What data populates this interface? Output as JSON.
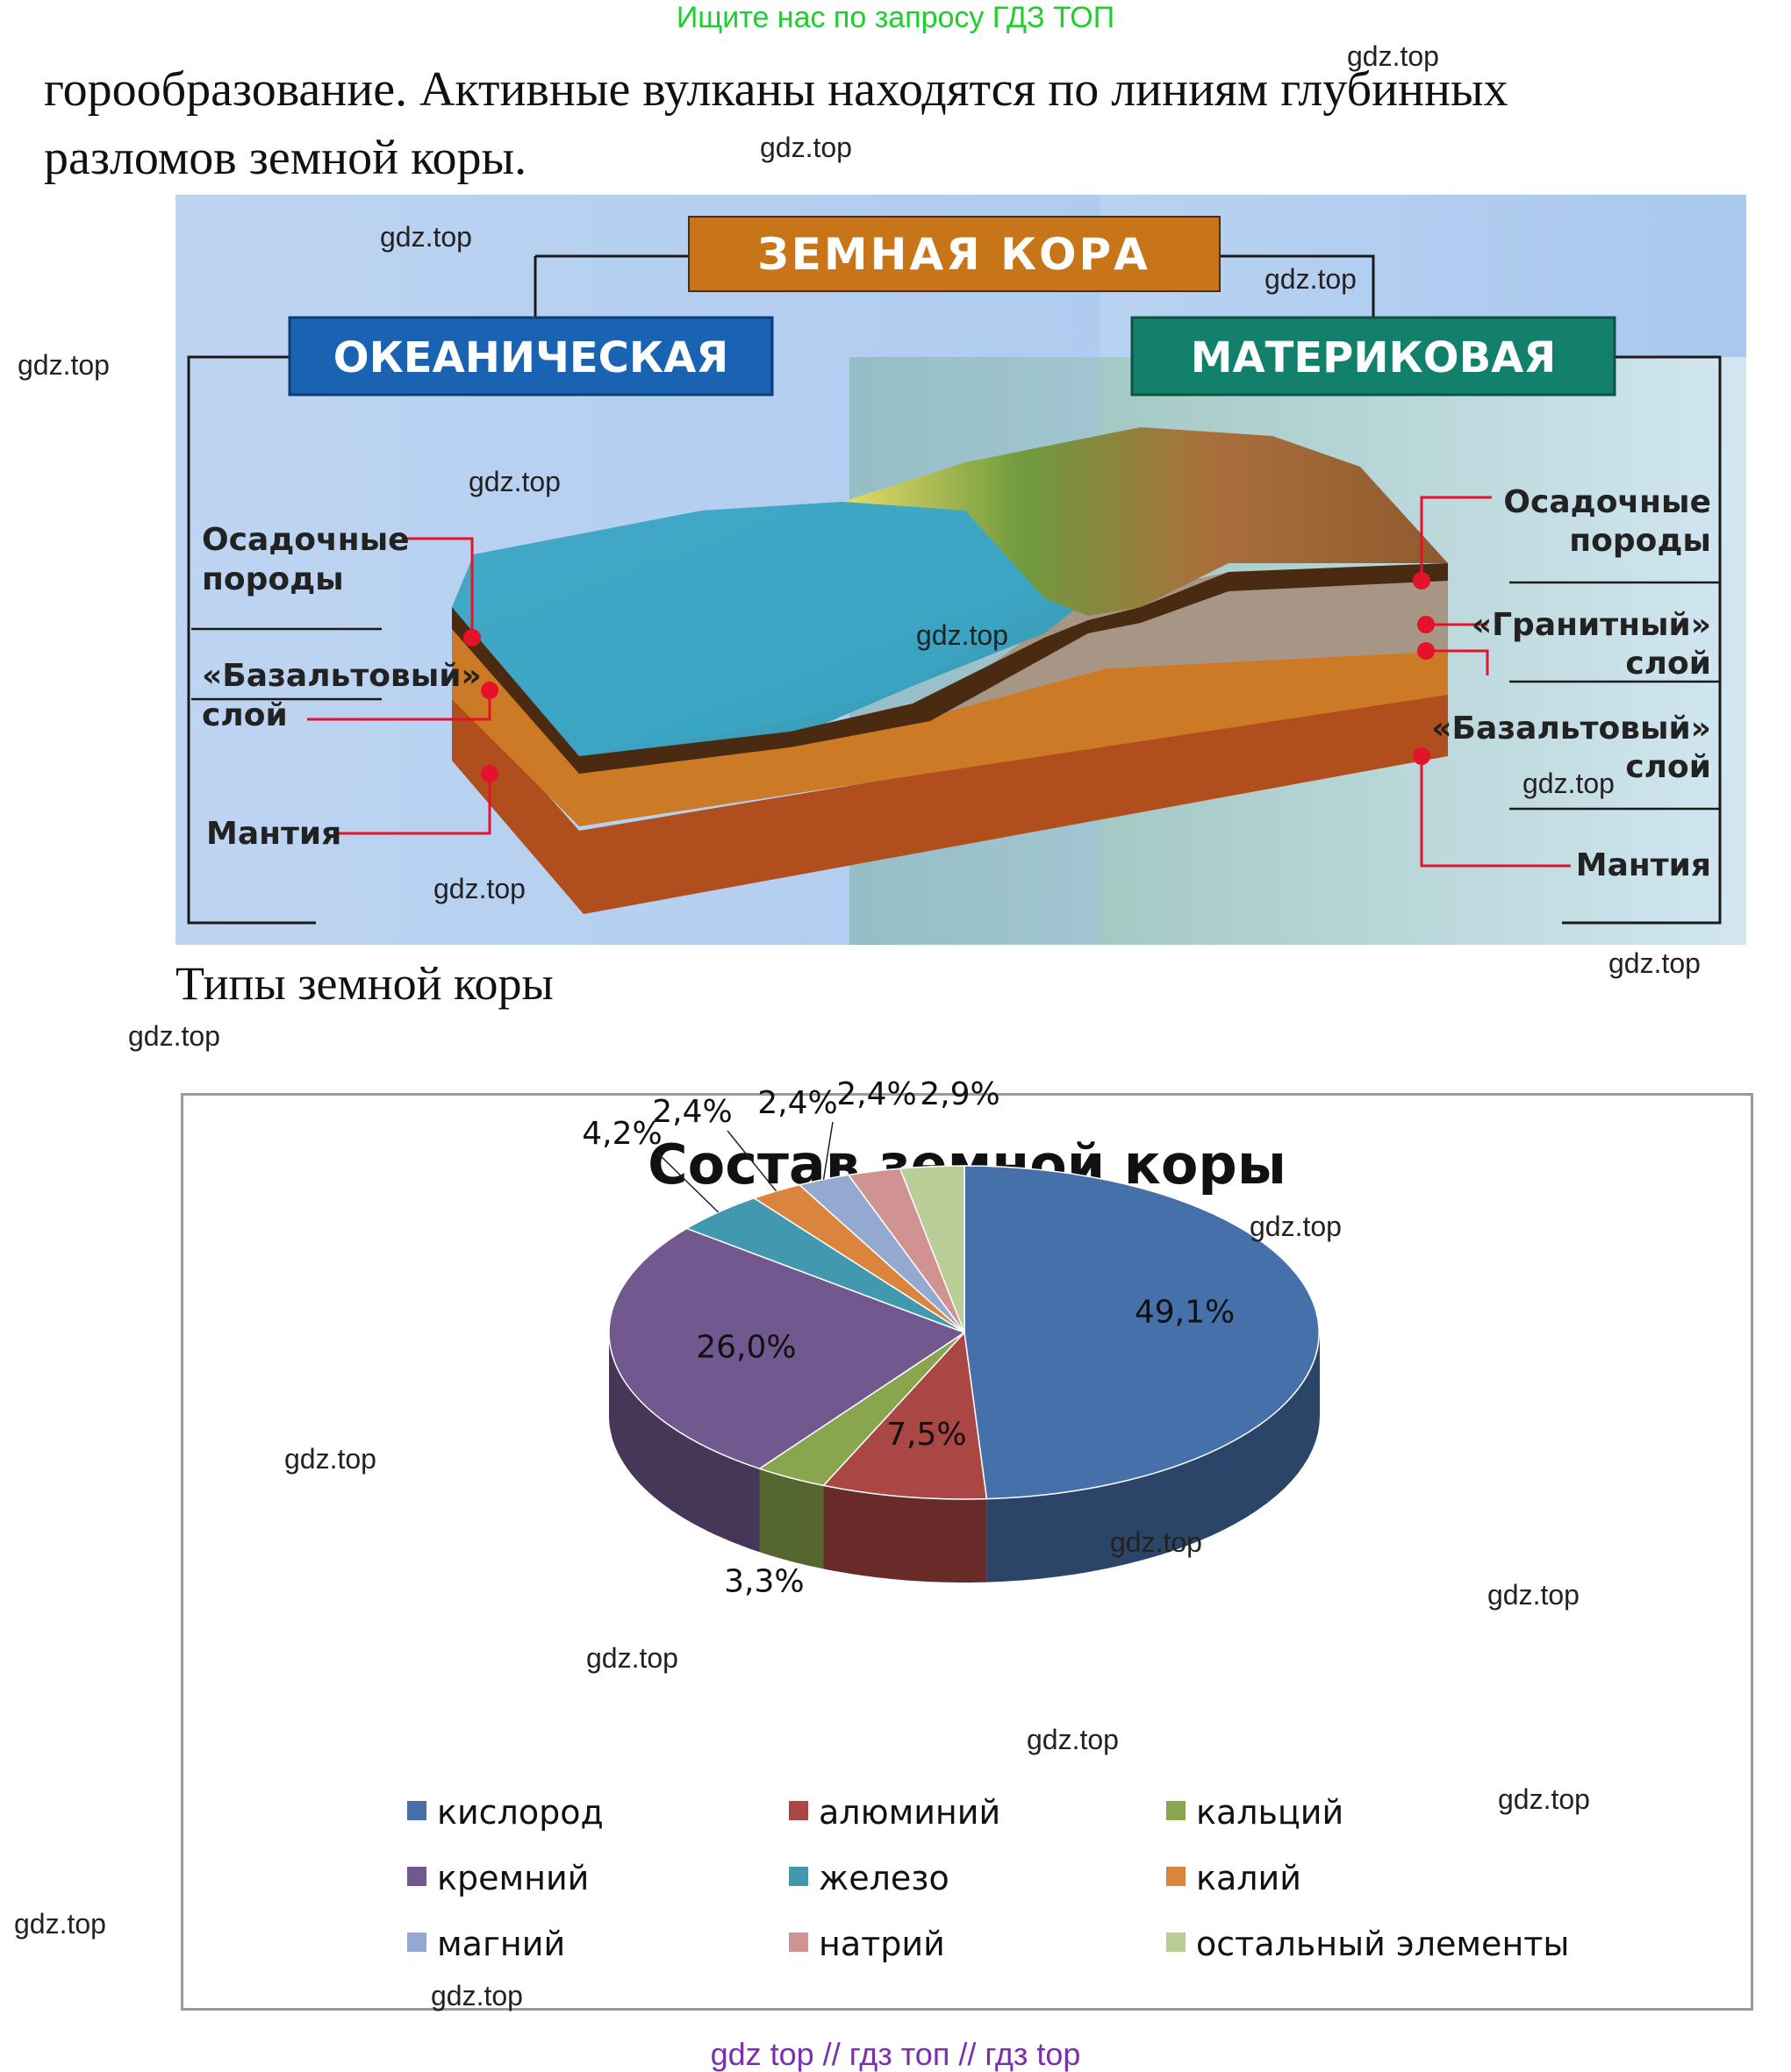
{
  "header": {
    "search_hint": "Ищите нас по запросу ГДЗ ТОП"
  },
  "text": {
    "line1": "горообразование. Активные вулканы находятся по линиям глубинных",
    "line2": "разломов земной коры."
  },
  "diagram": {
    "title": "ЗЕМНАЯ КОРА",
    "oceanic": {
      "heading": "ОКЕАНИЧЕСКАЯ",
      "sediment": [
        "Осадочные",
        "породы"
      ],
      "basalt": [
        "«Базальтовый»",
        "слой"
      ],
      "mantle": "Мантия"
    },
    "continental": {
      "heading": "МАТЕРИКОВАЯ",
      "sediment": [
        "Осадочные",
        "породы"
      ],
      "granite": [
        "«Гранитный»",
        "слой"
      ],
      "basalt": [
        "«Базальтовый»",
        "слой"
      ],
      "mantle": "Мантия"
    },
    "caption": "Типы земной коры",
    "colors": {
      "title_bg": "#c87519",
      "oceanic_bg": "#1a63b3",
      "continental_bg": "#12806a",
      "marker": "#e4122b"
    }
  },
  "chart_data": {
    "type": "pie",
    "title": "Состав земной коры",
    "categories": [
      "кислород",
      "алюминий",
      "кальций",
      "кремний",
      "железо",
      "калий",
      "магний",
      "натрий",
      "остальный элементы"
    ],
    "values": [
      49.1,
      7.5,
      3.3,
      26.0,
      4.2,
      2.4,
      2.4,
      2.4,
      2.9
    ],
    "labels": [
      "49,1%",
      "7,5%",
      "3,3%",
      "26,0%",
      "4,2%",
      "2,4%",
      "2,4%",
      "2,4%",
      "2,9%"
    ],
    "colors": [
      "#4570a9",
      "#aa4643",
      "#89a54e",
      "#71588f",
      "#4198af",
      "#db843d",
      "#93a9cf",
      "#d19392",
      "#b9cd96"
    ],
    "legend_position": "bottom",
    "three_d": true
  },
  "watermarks": [
    "gdz.top",
    "gdz.top",
    "gdz.top",
    "gdz.top",
    "gdz.top",
    "gdz.top",
    "gdz.top",
    "gdz.top",
    "gdz.top",
    "gdz.top",
    "gdz.top",
    "gdz.top",
    "gdz.top",
    "gdz.top",
    "gdz.top",
    "gdz.top",
    "gdz.top",
    "gdz.top",
    "gdz.top",
    "gdz.top"
  ],
  "footer": {
    "links": "gdz top  //  гдз топ  //  гдз top"
  }
}
